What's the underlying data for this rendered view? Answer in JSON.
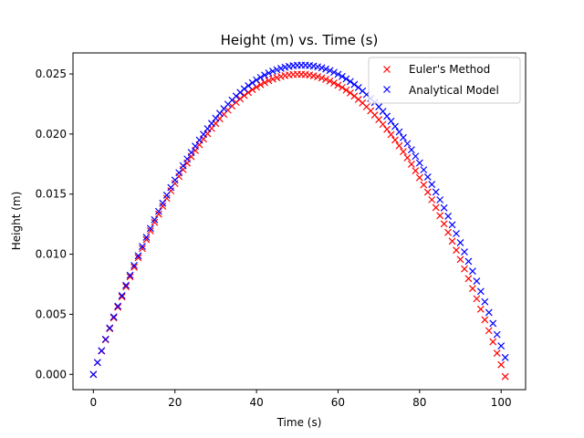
{
  "chart_data": {
    "type": "scatter",
    "title": "Height (m) vs. Time (s)",
    "xlabel": "Time (s)",
    "ylabel": "Height (m)",
    "xlim": [
      -5,
      106
    ],
    "ylim": [
      -0.00127,
      0.02675
    ],
    "xticks": [
      0,
      20,
      40,
      60,
      80,
      100
    ],
    "xtick_labels": [
      "0",
      "20",
      "40",
      "60",
      "80",
      "100"
    ],
    "yticks": [
      0.0,
      0.005,
      0.01,
      0.015,
      0.02,
      0.025
    ],
    "ytick_labels": [
      "0.000",
      "0.005",
      "0.010",
      "0.015",
      "0.020",
      "0.025"
    ],
    "grid": false,
    "legend_position": "top-right",
    "marker": "x",
    "series": [
      {
        "name": "Euler's Method",
        "color": "#ff0000",
        "x": [
          0,
          1,
          2,
          3,
          4,
          5,
          6,
          7,
          8,
          9,
          10,
          11,
          12,
          13,
          14,
          15,
          16,
          17,
          18,
          19,
          20,
          21,
          22,
          23,
          24,
          25,
          26,
          27,
          28,
          29,
          30,
          31,
          32,
          33,
          34,
          35,
          36,
          37,
          38,
          39,
          40,
          41,
          42,
          43,
          44,
          45,
          46,
          47,
          48,
          49,
          50,
          51,
          52,
          53,
          54,
          55,
          56,
          57,
          58,
          59,
          60,
          61,
          62,
          63,
          64,
          65,
          66,
          67,
          68,
          69,
          70,
          71,
          72,
          73,
          74,
          75,
          76,
          77,
          78,
          79,
          80,
          81,
          82,
          83,
          84,
          85,
          86,
          87,
          88,
          89,
          90,
          91,
          92,
          93,
          94,
          95,
          96,
          97,
          98,
          99,
          100,
          101
        ],
        "y": [
          0.0,
          0.00098,
          0.001941,
          0.002882,
          0.003803,
          0.004705,
          0.005588,
          0.006451,
          0.007294,
          0.008118,
          0.008922,
          0.009706,
          0.010471,
          0.011216,
          0.011942,
          0.012648,
          0.013334,
          0.014,
          0.014647,
          0.015275,
          0.015882,
          0.01647,
          0.017039,
          0.017587,
          0.018116,
          0.018626,
          0.019116,
          0.019586,
          0.020036,
          0.020467,
          0.020878,
          0.02127,
          0.021642,
          0.021994,
          0.022326,
          0.02264,
          0.022933,
          0.023207,
          0.023461,
          0.023695,
          0.02391,
          0.024105,
          0.02428,
          0.024436,
          0.024572,
          0.024688,
          0.024785,
          0.024862,
          0.024919,
          0.024957,
          0.024975,
          0.024973,
          0.024952,
          0.024911,
          0.02485,
          0.024769,
          0.024669,
          0.02455,
          0.02441,
          0.024251,
          0.024072,
          0.023874,
          0.023656,
          0.023418,
          0.02316,
          0.022883,
          0.022587,
          0.02227,
          0.021934,
          0.021578,
          0.021203,
          0.020808,
          0.020393,
          0.019958,
          0.019504,
          0.019031,
          0.018537,
          0.018024,
          0.017492,
          0.016939,
          0.016367,
          0.015776,
          0.015165,
          0.014534,
          0.013883,
          0.013213,
          0.012523,
          0.011813,
          0.011084,
          0.010335,
          0.009567,
          0.008779,
          0.007971,
          0.007143,
          0.006296,
          0.005429,
          0.004543,
          0.003637,
          0.002711,
          0.001766,
          0.000801,
          -0.000184
        ]
      },
      {
        "name": "Analytical Model",
        "color": "#0000ff",
        "x": [
          0,
          1,
          2,
          3,
          4,
          5,
          6,
          7,
          8,
          9,
          10,
          11,
          12,
          13,
          14,
          15,
          16,
          17,
          18,
          19,
          20,
          21,
          22,
          23,
          24,
          25,
          26,
          27,
          28,
          29,
          30,
          31,
          32,
          33,
          34,
          35,
          36,
          37,
          38,
          39,
          40,
          41,
          42,
          43,
          44,
          45,
          46,
          47,
          48,
          49,
          50,
          51,
          52,
          53,
          54,
          55,
          56,
          57,
          58,
          59,
          60,
          61,
          62,
          63,
          64,
          65,
          66,
          67,
          68,
          69,
          70,
          71,
          72,
          73,
          74,
          75,
          76,
          77,
          78,
          79,
          80,
          81,
          82,
          83,
          84,
          85,
          86,
          87,
          88,
          89,
          90,
          91,
          92,
          93,
          94,
          95,
          96,
          97,
          98,
          99,
          100,
          101
        ],
        "y": [
          0.0,
          0.000995,
          0.00197,
          0.002926,
          0.003862,
          0.004778,
          0.005675,
          0.006553,
          0.00741,
          0.008248,
          0.009067,
          0.009866,
          0.010645,
          0.011405,
          0.012145,
          0.012865,
          0.013566,
          0.014247,
          0.014909,
          0.015551,
          0.016173,
          0.016776,
          0.017359,
          0.017923,
          0.018467,
          0.018991,
          0.019496,
          0.019981,
          0.020446,
          0.020892,
          0.021318,
          0.021725,
          0.022112,
          0.022479,
          0.022827,
          0.023155,
          0.023463,
          0.023752,
          0.024021,
          0.02427,
          0.0245,
          0.02471,
          0.024901,
          0.025072,
          0.025223,
          0.025355,
          0.025467,
          0.025559,
          0.025632,
          0.025685,
          0.025719,
          0.025733,
          0.025727,
          0.025701,
          0.025657,
          0.025592,
          0.025508,
          0.025404,
          0.02528,
          0.025137,
          0.024974,
          0.024792,
          0.02459,
          0.024368,
          0.024127,
          0.023866,
          0.023585,
          0.023285,
          0.022965,
          0.022625,
          0.022266,
          0.021887,
          0.021489,
          0.021071,
          0.020633,
          0.020176,
          0.019699,
          0.019203,
          0.018687,
          0.018151,
          0.017596,
          0.017021,
          0.016426,
          0.015812,
          0.015178,
          0.014525,
          0.013852,
          0.013159,
          0.012447,
          0.011715,
          0.010963,
          0.010192,
          0.009401,
          0.00859,
          0.00776,
          0.00691,
          0.006041,
          0.005152,
          0.004243,
          0.003315,
          0.002367,
          0.0014
        ]
      }
    ]
  }
}
